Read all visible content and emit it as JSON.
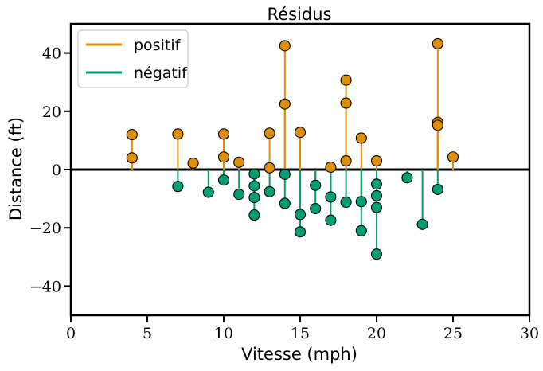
{
  "chart_data": {
    "type": "scatter",
    "title": "Résidus",
    "xlabel": "Vitesse (mph)",
    "ylabel": "Distance (ft)",
    "xlim": [
      0,
      30
    ],
    "ylim": [
      -50,
      50
    ],
    "xticks": [
      0,
      5,
      10,
      15,
      20,
      25,
      30
    ],
    "yticks": [
      -40,
      -20,
      0,
      20,
      40
    ],
    "ytick_labels": [
      "−40",
      "−20",
      "0",
      "20",
      "40"
    ],
    "grid": false,
    "legend_position": "top-left",
    "zero_line": true,
    "series": [
      {
        "name": "positif",
        "color": "#DE8F05",
        "points": [
          [
            4,
            12
          ],
          [
            4,
            4
          ],
          [
            7,
            12.2
          ],
          [
            8,
            2.2
          ],
          [
            10,
            12.2
          ],
          [
            10,
            4.3
          ],
          [
            11,
            2.5
          ],
          [
            13,
            12.5
          ],
          [
            13,
            0.6
          ],
          [
            14,
            42.5
          ],
          [
            14,
            22.5
          ],
          [
            15,
            12.8
          ],
          [
            17,
            0.8
          ],
          [
            18,
            30.7
          ],
          [
            18,
            22.8
          ],
          [
            18,
            3
          ],
          [
            19,
            10.8
          ],
          [
            20,
            3
          ],
          [
            24,
            43.2
          ],
          [
            24,
            16.2
          ],
          [
            24,
            15.2
          ],
          [
            25,
            4.3
          ]
        ]
      },
      {
        "name": "négatif",
        "color": "#029E73",
        "points": [
          [
            7,
            -5.8
          ],
          [
            9,
            -7.8
          ],
          [
            10,
            -3.6
          ],
          [
            11,
            -8.5
          ],
          [
            12,
            -1.5
          ],
          [
            12,
            -5.6
          ],
          [
            12,
            -9.6
          ],
          [
            12,
            -15.6
          ],
          [
            13,
            -7.6
          ],
          [
            14,
            -1.6
          ],
          [
            14,
            -11.6
          ],
          [
            15,
            -15.4
          ],
          [
            15,
            -21.4
          ],
          [
            16,
            -5.4
          ],
          [
            16,
            -13.4
          ],
          [
            17,
            -9.4
          ],
          [
            17,
            -17.4
          ],
          [
            18,
            -11.2
          ],
          [
            19,
            -11
          ],
          [
            19,
            -21
          ],
          [
            20,
            -5
          ],
          [
            20,
            -9
          ],
          [
            20,
            -13
          ],
          [
            20,
            -29
          ],
          [
            22,
            -2.8
          ],
          [
            23,
            -18.8
          ],
          [
            24,
            -6.8
          ]
        ]
      }
    ]
  }
}
